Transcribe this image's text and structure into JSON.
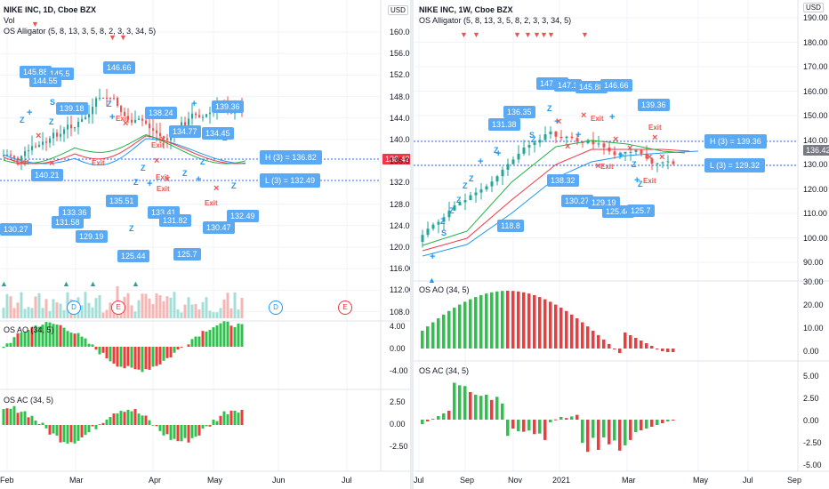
{
  "colors": {
    "up": "#26a69a",
    "down": "#ef5350",
    "ao_up": "#2dc24b",
    "ao_down": "#ef3b3b",
    "jaw": "#2196f3",
    "teeth": "#f23645",
    "lips": "#22b14c",
    "callout": "#5aa9f4",
    "pricetag": "#f23645"
  },
  "left": {
    "legend": {
      "title": "NIKE INC, 1D, Cboe BZX",
      "vol": "Vol",
      "alligator": "OS Alligator (5, 8, 13, 3, 5, 8, 2, 3, 3, 34, 5)"
    },
    "currency": "USD",
    "price_tag": "136.42",
    "price_ticks": [
      "160.00",
      "156.00",
      "152.00",
      "148.00",
      "144.00",
      "140.00",
      "136.00",
      "132.00",
      "128.00",
      "124.00",
      "120.00",
      "116.00",
      "112.00",
      "108.00"
    ],
    "ao_label": "OS AO (34, 5)",
    "ao_ticks": [
      "4.00",
      "0.00",
      "-4.00"
    ],
    "ac_label": "OS AC (34, 5)",
    "ac_ticks": [
      "2.50",
      "0.00",
      "-2.50"
    ],
    "x_labels": [
      "Feb",
      "Mar",
      "Apr",
      "May",
      "Jun",
      "Jul"
    ],
    "callouts": [
      "145.88",
      "145.5",
      "144.55",
      "146.66",
      "139.18",
      "138.24",
      "134.77",
      "134.45",
      "139.36",
      "140.21",
      "133.36",
      "131.58",
      "129.19",
      "135.51",
      "133.41",
      "131.82",
      "130.47",
      "132.49",
      "125.7",
      "125.44",
      "130.27"
    ],
    "hbox": "H (3) = 136.82",
    "lbox": "L (3) = 132.49",
    "events": [
      "D",
      "E",
      "D",
      "E"
    ],
    "exit_label": "Exit",
    "z_label": "Z",
    "s_label": "S"
  },
  "right": {
    "legend": {
      "title": "NIKE INC, 1W, Cboe BZX",
      "alligator": "OS Alligator (5, 8, 13, 3, 5, 8, 2, 3, 3, 34, 5)"
    },
    "currency": "USD",
    "price_tag": "136.42",
    "price_ticks": [
      "190.00",
      "180.00",
      "170.00",
      "160.00",
      "150.00",
      "140.00",
      "130.00",
      "120.00",
      "110.00",
      "100.00",
      "90.00"
    ],
    "ao_label": "OS AO (34, 5)",
    "ao_ticks": [
      "30.00",
      "20.00",
      "10.00",
      "0.00"
    ],
    "ac_label": "OS AC (34, 5)",
    "ac_ticks": [
      "5.00",
      "2.50",
      "0.00",
      "-2.50",
      "-5.00"
    ],
    "x_labels": [
      "Jul",
      "Sep",
      "Nov",
      "2021",
      "Mar",
      "May",
      "Jul",
      "Sep"
    ],
    "callouts": [
      "147.95",
      "147.1",
      "145.88",
      "146.66",
      "136.35",
      "131.38",
      "139.36",
      "138.32",
      "130.27",
      "129.19",
      "125.44",
      "125.7",
      "118.8"
    ],
    "hbox": "H (3) = 139.36",
    "lbox": "L (3) = 129.32",
    "exit_label": "Exit",
    "z_label": "Z",
    "s_label": "S"
  }
}
